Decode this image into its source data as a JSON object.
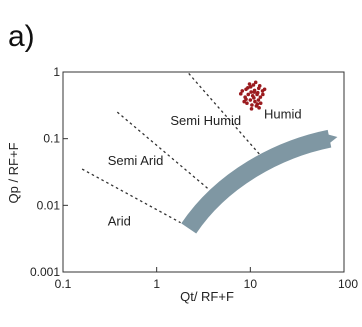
{
  "panel_label": "a)",
  "chart_data": {
    "type": "scatter",
    "title": "",
    "xlabel": "Qt/ RF+F",
    "ylabel": "Qp / RF+F",
    "x_scale": "log",
    "y_scale": "log",
    "xlim": [
      0.1,
      100
    ],
    "ylim": [
      0.001,
      1
    ],
    "x_ticks": [
      {
        "value": 0.1,
        "label": "0.1"
      },
      {
        "value": 1,
        "label": "1"
      },
      {
        "value": 10,
        "label": "10"
      },
      {
        "value": 100,
        "label": "100"
      }
    ],
    "y_ticks": [
      {
        "value": 0.001,
        "label": "0.001"
      },
      {
        "value": 0.01,
        "label": "0.01"
      },
      {
        "value": 0.1,
        "label": "0.1"
      },
      {
        "value": 1,
        "label": "1"
      }
    ],
    "grid": false,
    "regions": [
      "Arid",
      "Semi Arid",
      "Semi Humid",
      "Humid"
    ],
    "region_label_positions": [
      {
        "label": "Arid",
        "x": 0.3,
        "y": 0.005
      },
      {
        "label": "Semi Arid",
        "x": 0.3,
        "y": 0.04
      },
      {
        "label": "Semi Humid",
        "x": 1.4,
        "y": 0.16
      },
      {
        "label": "Humid",
        "x": 14,
        "y": 0.2
      }
    ],
    "boundaries": [
      {
        "from": [
          0.16,
          0.035
        ],
        "to": [
          1.8,
          0.0055
        ]
      },
      {
        "from": [
          0.38,
          0.25
        ],
        "to": [
          3.5,
          0.018
        ]
      },
      {
        "from": [
          2.2,
          0.95
        ],
        "to": [
          13,
          0.055
        ]
      }
    ],
    "trend_arrow": {
      "color": "#7f97a3",
      "path": [
        [
          2.2,
          0.0045
        ],
        [
          5,
          0.025
        ],
        [
          20,
          0.07
        ],
        [
          70,
          0.1
        ]
      ]
    },
    "series": [
      {
        "color": "#9b1b1f",
        "points": [
          [
            8.2,
            0.52
          ],
          [
            9.0,
            0.55
          ],
          [
            10.1,
            0.6
          ],
          [
            11.0,
            0.5
          ],
          [
            12.3,
            0.57
          ],
          [
            13.5,
            0.52
          ],
          [
            9.5,
            0.46
          ],
          [
            10.6,
            0.44
          ],
          [
            11.8,
            0.46
          ],
          [
            12.8,
            0.42
          ],
          [
            8.8,
            0.42
          ],
          [
            10.0,
            0.38
          ],
          [
            11.2,
            0.36
          ],
          [
            12.2,
            0.38
          ],
          [
            9.2,
            0.34
          ],
          [
            10.4,
            0.32
          ],
          [
            11.6,
            0.31
          ],
          [
            8.6,
            0.36
          ],
          [
            12.9,
            0.34
          ],
          [
            9.8,
            0.66
          ],
          [
            11.4,
            0.7
          ],
          [
            10.8,
            0.64
          ],
          [
            12.6,
            0.62
          ],
          [
            13.6,
            0.46
          ],
          [
            7.9,
            0.47
          ],
          [
            10.2,
            0.5
          ],
          [
            11.1,
            0.53
          ],
          [
            9.4,
            0.58
          ],
          [
            12.0,
            0.49
          ],
          [
            10.9,
            0.41
          ],
          [
            9.0,
            0.39
          ],
          [
            11.9,
            0.33
          ],
          [
            10.3,
            0.28
          ],
          [
            12.4,
            0.29
          ],
          [
            14.2,
            0.55
          ]
        ]
      }
    ]
  }
}
